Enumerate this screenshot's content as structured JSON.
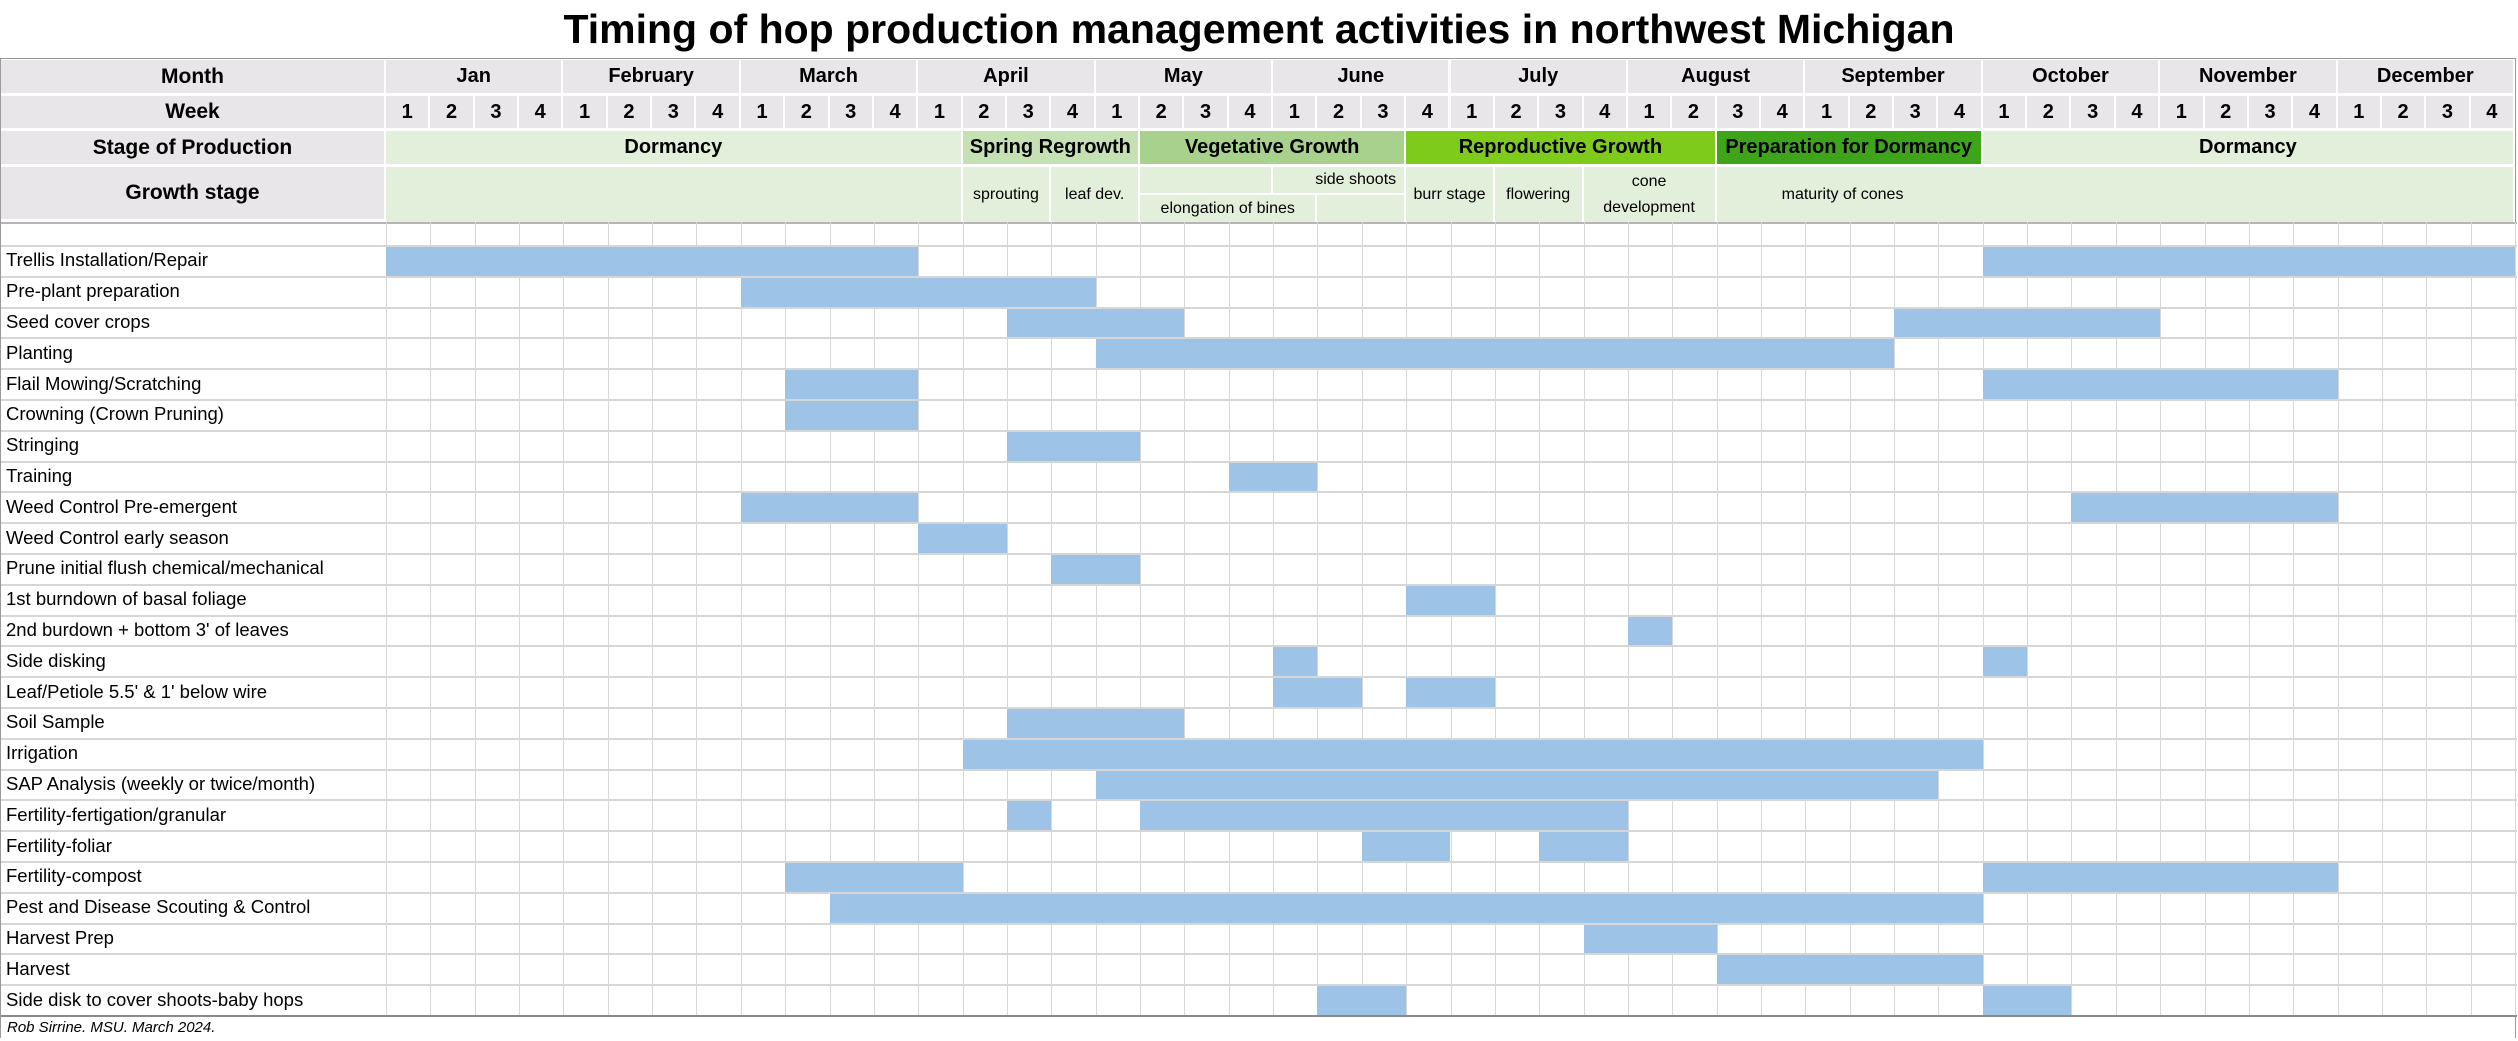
{
  "title": "Timing of hop production management activities in northwest Michigan",
  "footer": "Rob Sirrine. MSU. March 2024.",
  "colors": {
    "header_bg": "#e8e6e8",
    "dormancy": "#e2efda",
    "spring_regrowth": "#c5e0b3",
    "vegetative_growth": "#a9d18e",
    "reproductive_growth": "#7fcb1b",
    "preparation_for_dormancy": "#3ea51a",
    "activity_bar": "#9dc3e6",
    "grid": "#d6d6d6"
  },
  "chart_data": {
    "type": "gantt",
    "title": "Timing of hop production management activities in northwest Michigan",
    "row_labels": {
      "month": "Month",
      "week": "Week",
      "stage": "Stage of Production",
      "growth": "Growth stage"
    },
    "months": [
      "Jan",
      "February",
      "March",
      "April",
      "May",
      "June",
      "July",
      "August",
      "September",
      "October",
      "November",
      "December"
    ],
    "weeks_per_month": [
      "1",
      "2",
      "3",
      "4"
    ],
    "stages": [
      {
        "label": "Dormancy",
        "from": [
          "Jan",
          1
        ],
        "to": [
          "April",
          1
        ],
        "color": "#e2efda"
      },
      {
        "label": "Spring Regrowth",
        "from": [
          "April",
          2
        ],
        "to": [
          "May",
          1
        ],
        "color": "#c5e0b3"
      },
      {
        "label": "Vegetative Growth",
        "from": [
          "May",
          2
        ],
        "to": [
          "June",
          3
        ],
        "color": "#a9d18e"
      },
      {
        "label": "Reproductive Growth",
        "from": [
          "June",
          4
        ],
        "to": [
          "August",
          2
        ],
        "color": "#7fcb1b"
      },
      {
        "label": "Preparation for Dormancy",
        "from": [
          "August",
          3
        ],
        "to": [
          "September",
          4
        ],
        "color": "#3ea51a"
      },
      {
        "label": "Dormancy",
        "from": [
          "October",
          1
        ],
        "to": [
          "December",
          4
        ],
        "color": "#e2efda"
      }
    ],
    "growth_stages": [
      {
        "label": "",
        "from": [
          "Jan",
          1
        ],
        "to": [
          "April",
          1
        ],
        "part": "full"
      },
      {
        "label": "sprouting",
        "from": [
          "April",
          2
        ],
        "to": [
          "April",
          3
        ],
        "part": "full"
      },
      {
        "label": "leaf dev.",
        "from": [
          "April",
          4
        ],
        "to": [
          "May",
          1
        ],
        "part": "full"
      },
      {
        "label": "",
        "from": [
          "May",
          2
        ],
        "to": [
          "May",
          4
        ],
        "part": "top"
      },
      {
        "label": "side shoots",
        "from": [
          "June",
          1
        ],
        "to": [
          "June",
          3
        ],
        "part": "top"
      },
      {
        "label": "elongation of bines",
        "from": [
          "May",
          2
        ],
        "to": [
          "June",
          1
        ],
        "part": "bottom"
      },
      {
        "label": "",
        "from": [
          "June",
          2
        ],
        "to": [
          "June",
          3
        ],
        "part": "bottom"
      },
      {
        "label": "burr stage",
        "from": [
          "June",
          4
        ],
        "to": [
          "July",
          1
        ],
        "part": "full"
      },
      {
        "label": "flowering",
        "from": [
          "July",
          2
        ],
        "to": [
          "July",
          3
        ],
        "part": "full"
      },
      {
        "label": "cone development",
        "from": [
          "July",
          4
        ],
        "to": [
          "August",
          2
        ],
        "part": "full"
      },
      {
        "label": "maturity of cones",
        "from": [
          "August",
          3
        ],
        "to": [
          "December",
          4
        ],
        "part": "full"
      }
    ],
    "activities": [
      {
        "label": "Trellis Installation/Repair",
        "bars": [
          [
            [
              "Jan",
              1
            ],
            [
              "March",
              4
            ]
          ],
          [
            [
              "October",
              1
            ],
            [
              "December",
              4
            ]
          ]
        ]
      },
      {
        "label": "Pre-plant preparation",
        "bars": [
          [
            [
              "March",
              1
            ],
            [
              "April",
              4
            ]
          ]
        ]
      },
      {
        "label": "Seed cover crops",
        "bars": [
          [
            [
              "April",
              3
            ],
            [
              "May",
              2
            ]
          ],
          [
            [
              "September",
              3
            ],
            [
              "October",
              4
            ]
          ]
        ]
      },
      {
        "label": "Planting",
        "bars": [
          [
            [
              "May",
              1
            ],
            [
              "September",
              2
            ]
          ]
        ]
      },
      {
        "label": "Flail Mowing/Scratching",
        "bars": [
          [
            [
              "March",
              2
            ],
            [
              "March",
              4
            ]
          ],
          [
            [
              "October",
              1
            ],
            [
              "November",
              4
            ]
          ]
        ]
      },
      {
        "label": "Crowning (Crown Pruning)",
        "bars": [
          [
            [
              "March",
              2
            ],
            [
              "March",
              4
            ]
          ]
        ]
      },
      {
        "label": "Stringing",
        "bars": [
          [
            [
              "April",
              3
            ],
            [
              "May",
              1
            ]
          ]
        ]
      },
      {
        "label": "Training",
        "bars": [
          [
            [
              "May",
              4
            ],
            [
              "June",
              1
            ]
          ]
        ]
      },
      {
        "label": "Weed Control Pre-emergent",
        "bars": [
          [
            [
              "March",
              1
            ],
            [
              "March",
              4
            ]
          ],
          [
            [
              "October",
              3
            ],
            [
              "November",
              4
            ]
          ]
        ]
      },
      {
        "label": "Weed Control early season",
        "bars": [
          [
            [
              "April",
              1
            ],
            [
              "April",
              2
            ]
          ]
        ]
      },
      {
        "label": "Prune initial flush chemical/mechanical",
        "bars": [
          [
            [
              "April",
              4
            ],
            [
              "May",
              1
            ]
          ]
        ]
      },
      {
        "label": "1st burndown of basal foliage",
        "bars": [
          [
            [
              "June",
              4
            ],
            [
              "July",
              1
            ]
          ]
        ]
      },
      {
        "label": "2nd burdown + bottom 3' of leaves",
        "bars": [
          [
            [
              "August",
              1
            ],
            [
              "August",
              1
            ]
          ]
        ]
      },
      {
        "label": "Side disking",
        "bars": [
          [
            [
              "June",
              1
            ],
            [
              "June",
              1
            ]
          ],
          [
            [
              "October",
              1
            ],
            [
              "October",
              1
            ]
          ]
        ]
      },
      {
        "label": "Leaf/Petiole 5.5' & 1' below wire",
        "bars": [
          [
            [
              "June",
              1
            ],
            [
              "June",
              2
            ]
          ],
          [
            [
              "June",
              4
            ],
            [
              "July",
              1
            ]
          ]
        ]
      },
      {
        "label": "Soil Sample",
        "bars": [
          [
            [
              "April",
              3
            ],
            [
              "May",
              2
            ]
          ]
        ]
      },
      {
        "label": "Irrigation",
        "bars": [
          [
            [
              "April",
              2
            ],
            [
              "September",
              4
            ]
          ]
        ]
      },
      {
        "label": "SAP Analysis (weekly or twice/month)",
        "bars": [
          [
            [
              "May",
              1
            ],
            [
              "September",
              3
            ]
          ]
        ]
      },
      {
        "label": "Fertility-fertigation/granular",
        "bars": [
          [
            [
              "April",
              3
            ],
            [
              "April",
              3
            ]
          ],
          [
            [
              "May",
              2
            ],
            [
              "July",
              4
            ]
          ]
        ]
      },
      {
        "label": "Fertility-foliar",
        "bars": [
          [
            [
              "June",
              3
            ],
            [
              "June",
              4
            ]
          ],
          [
            [
              "July",
              3
            ],
            [
              "July",
              4
            ]
          ]
        ]
      },
      {
        "label": "Fertility-compost",
        "bars": [
          [
            [
              "March",
              2
            ],
            [
              "April",
              1
            ]
          ],
          [
            [
              "October",
              1
            ],
            [
              "November",
              4
            ]
          ]
        ]
      },
      {
        "label": "Pest and Disease Scouting & Control",
        "bars": [
          [
            [
              "March",
              3
            ],
            [
              "September",
              4
            ]
          ]
        ]
      },
      {
        "label": "Harvest Prep",
        "bars": [
          [
            [
              "July",
              4
            ],
            [
              "August",
              2
            ]
          ]
        ]
      },
      {
        "label": "Harvest",
        "bars": [
          [
            [
              "August",
              3
            ],
            [
              "September",
              4
            ]
          ]
        ]
      },
      {
        "label": "Side disk to cover shoots-baby hops",
        "bars": [
          [
            [
              "June",
              2
            ],
            [
              "June",
              3
            ]
          ],
          [
            [
              "October",
              1
            ],
            [
              "October",
              2
            ]
          ]
        ]
      }
    ]
  }
}
